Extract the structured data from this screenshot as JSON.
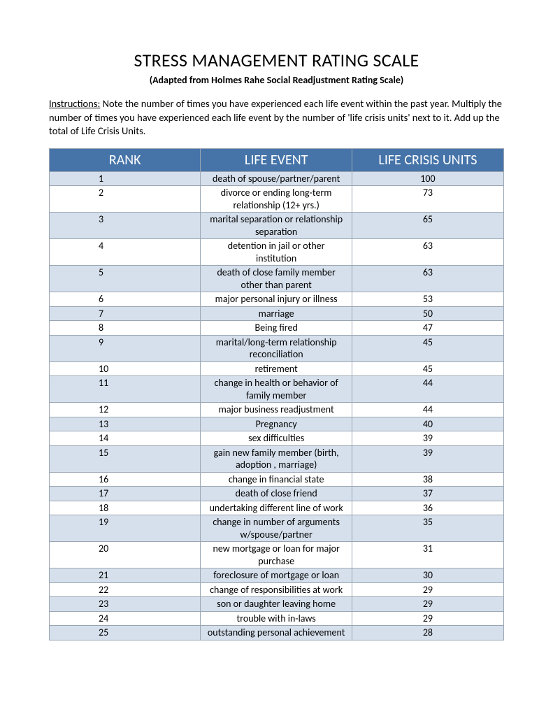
{
  "title": "STRESS MANAGEMENT RATING SCALE",
  "subtitle": "(Adapted from Holmes Rahe Social Readjustment Rating Scale)",
  "instructions_label": "Instructions:",
  "instructions_text": "  Note the number of times you have experienced each life event within the past year. Multiply the number of times you have experienced each life event by the number of 'life crisis units' next to it.  Add up the total of Life Crisis Units.",
  "table": {
    "type": "table",
    "header_bg": "#4674a9",
    "header_fg": "#ffffff",
    "row_odd_bg": "#d6e0ec",
    "row_even_bg": "#ffffff",
    "border_color": "#9aa6b2",
    "columns": [
      "RANK",
      "LIFE EVENT",
      "LIFE CRISIS UNITS"
    ],
    "rows": [
      [
        "1",
        "death of spouse/partner/parent",
        "100"
      ],
      [
        "2",
        "divorce or ending long-term relationship (12+ yrs.)",
        "73"
      ],
      [
        "3",
        "marital separation or relationship separation",
        "65"
      ],
      [
        "4",
        "detention in jail or other institution",
        "63"
      ],
      [
        "5",
        "death of close family member other than parent",
        "63"
      ],
      [
        "6",
        "major personal injury or illness",
        "53"
      ],
      [
        "7",
        "marriage",
        "50"
      ],
      [
        "8",
        "Being fired",
        "47"
      ],
      [
        "9",
        "marital/long-term relationship reconciliation",
        "45"
      ],
      [
        "10",
        "retirement",
        "45"
      ],
      [
        "11",
        "change in health or behavior of family member",
        "44"
      ],
      [
        "12",
        "major business readjustment",
        "44"
      ],
      [
        "13",
        "Pregnancy",
        "40"
      ],
      [
        "14",
        "sex difficulties",
        "39"
      ],
      [
        "15",
        "gain new family member (birth, adoption , marriage)",
        "39"
      ],
      [
        "16",
        "change in financial state",
        "38"
      ],
      [
        "17",
        "death of close friend",
        "37"
      ],
      [
        "18",
        "undertaking different line of work",
        "36"
      ],
      [
        "19",
        "change in number of arguments w/spouse/partner",
        "35"
      ],
      [
        "20",
        "new mortgage or loan for major purchase",
        "31"
      ],
      [
        "21",
        "foreclosure of mortgage or loan",
        "30"
      ],
      [
        "22",
        "change of responsibilities at work",
        "29"
      ],
      [
        "23",
        "son or daughter leaving home",
        "29"
      ],
      [
        "24",
        "trouble with in-laws",
        "29"
      ],
      [
        "25",
        "outstanding personal achievement",
        "28"
      ]
    ]
  }
}
